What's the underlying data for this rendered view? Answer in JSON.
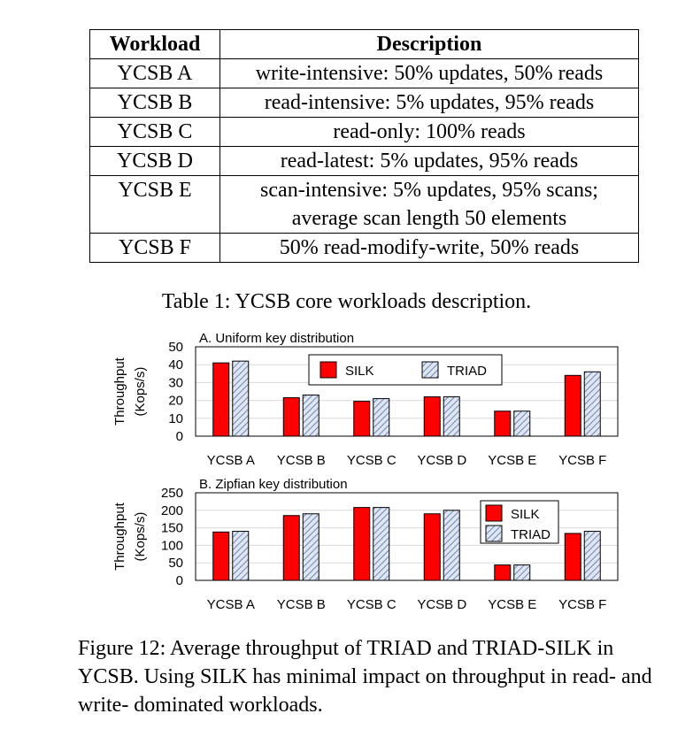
{
  "table": {
    "headers": [
      "Workload",
      "Description"
    ],
    "rows": [
      {
        "workload": "YCSB A",
        "description": [
          "write-intensive: 50% updates, 50% reads"
        ]
      },
      {
        "workload": "YCSB B",
        "description": [
          "read-intensive: 5% updates, 95% reads"
        ]
      },
      {
        "workload": "YCSB C",
        "description": [
          "read-only: 100% reads"
        ]
      },
      {
        "workload": "YCSB D",
        "description": [
          "read-latest: 5% updates, 95% reads"
        ]
      },
      {
        "workload": "YCSB E",
        "description": [
          "scan-intensive: 5% updates, 95% scans;",
          "average scan length 50 elements"
        ]
      },
      {
        "workload": "YCSB F",
        "description": [
          "50% read-modify-write, 50% reads"
        ]
      }
    ],
    "caption": "Table 1: YCSB core workloads description."
  },
  "chart_data": [
    {
      "type": "bar",
      "title": "A. Uniform key distribution",
      "categories": [
        "YCSB A",
        "YCSB B",
        "YCSB C",
        "YCSB D",
        "YCSB E",
        "YCSB F"
      ],
      "series": [
        {
          "name": "SILK",
          "values": [
            41,
            21.5,
            19.5,
            22,
            14,
            34
          ]
        },
        {
          "name": "TRIAD",
          "values": [
            42,
            23,
            21,
            22,
            14,
            36
          ]
        }
      ],
      "ylabel": [
        "Throughput",
        "(Kops/s)"
      ],
      "ylim": [
        0,
        50
      ],
      "yticks": [
        0,
        10,
        20,
        30,
        40,
        50
      ],
      "legend": "top-center",
      "grid": true
    },
    {
      "type": "bar",
      "title": "B. Zipfian key distribution",
      "categories": [
        "YCSB A",
        "YCSB B",
        "YCSB C",
        "YCSB D",
        "YCSB E",
        "YCSB F"
      ],
      "series": [
        {
          "name": "SILK",
          "values": [
            138,
            185,
            208,
            190,
            44,
            134
          ]
        },
        {
          "name": "TRIAD",
          "values": [
            140,
            190,
            208,
            200,
            44,
            140
          ]
        }
      ],
      "ylabel": [
        "Throughput",
        "(Kops/s)"
      ],
      "ylim": [
        0,
        250
      ],
      "yticks": [
        0,
        50,
        100,
        150,
        200,
        250
      ],
      "legend": "top-right",
      "grid": true
    }
  ],
  "colors": {
    "silk": "#ff0000",
    "triad_fill": "#dfe6f1",
    "triad_hatch": "#4f6fa8",
    "grid": "#d9d9d9"
  },
  "figure_caption": "Figure 12: Average throughput of TRIAD and TRIAD-SILK in YCSB. Using SILK has minimal impact on throughput in read- and write- dominated workloads."
}
